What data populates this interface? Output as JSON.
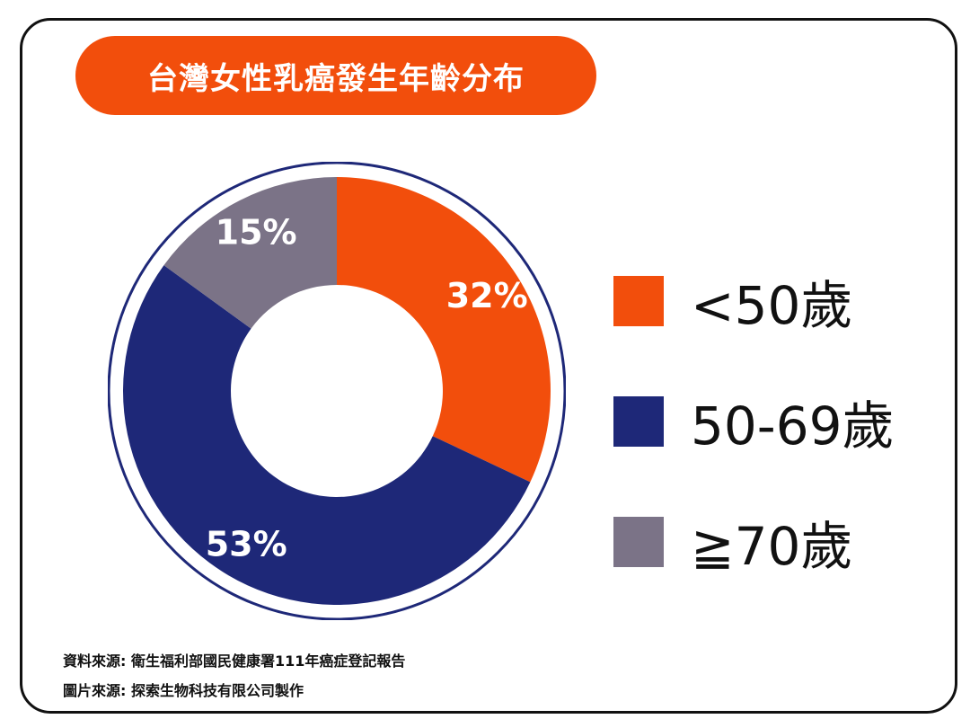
{
  "title": "台灣女性乳癌發生年齡分布",
  "chart_data": {
    "type": "pie",
    "style": "donut",
    "categories": [
      "<50歲",
      "50-69歲",
      "≧70歲"
    ],
    "values": [
      32,
      53,
      15
    ],
    "data_labels": [
      "32%",
      "53%",
      "15%"
    ],
    "unit": "%",
    "legend_position": "right",
    "colors": [
      "#f24e0c",
      "#1e2878",
      "#7b7387"
    ],
    "ring_color": "#1e2878"
  },
  "legend": [
    {
      "label": "<50歲",
      "color": "#f24e0c"
    },
    {
      "label": "50-69歲",
      "color": "#1e2878"
    },
    {
      "label": "≧70歲",
      "color": "#7b7387"
    }
  ],
  "footer": {
    "data_source": "資料來源: 衛生福利部國民健康署111年癌症登記報告",
    "image_source": "圖片來源: 探索生物科技有限公司製作"
  }
}
